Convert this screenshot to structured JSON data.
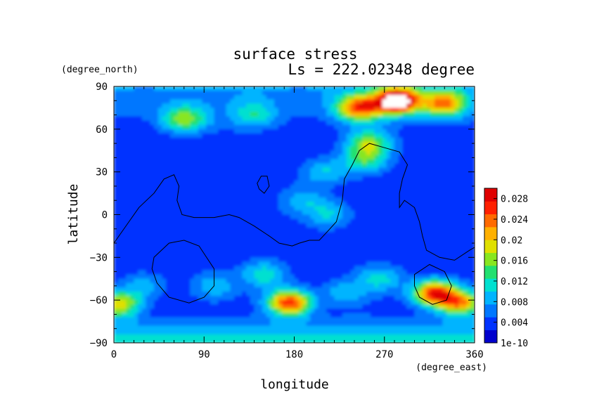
{
  "chart_data": {
    "type": "heatmap",
    "title": "surface stress",
    "subtitle": "Ls = 222.02348 degree",
    "xlabel": "longitude",
    "ylabel": "latitude",
    "x_unit": "(degree_east)",
    "y_unit": "(degree_north)",
    "xlim": [
      0,
      360
    ],
    "ylim": [
      -90,
      90
    ],
    "x_ticks": [
      "0",
      "90",
      "180",
      "270",
      "360"
    ],
    "y_ticks": [
      "90",
      "60",
      "30",
      "0",
      "-30",
      "-60",
      "-90"
    ],
    "colorbar": {
      "range": [
        0,
        0.03
      ],
      "tick_labels": [
        "1e-10",
        "0.004",
        "0.008",
        "0.012",
        "0.016",
        "0.02",
        "0.024",
        "0.028"
      ],
      "tick_values": [
        0,
        0.004,
        0.008,
        0.012,
        0.016,
        0.02,
        0.024,
        0.028
      ],
      "colors": [
        "#0000cd",
        "#0033ff",
        "#0077ff",
        "#00b4ff",
        "#00e0d0",
        "#22e070",
        "#88e620",
        "#e0e000",
        "#ffb000",
        "#ff6a00",
        "#ff2000",
        "#e00000"
      ]
    },
    "hotspots": [
      {
        "lon": 283,
        "lat": 80,
        "value": 0.034
      },
      {
        "lon": 245,
        "lat": 75,
        "value": 0.024
      },
      {
        "lon": 330,
        "lat": 78,
        "value": 0.022
      },
      {
        "lon": 70,
        "lat": 67,
        "value": 0.016
      },
      {
        "lon": 140,
        "lat": 70,
        "value": 0.011
      },
      {
        "lon": 320,
        "lat": -55,
        "value": 0.026
      },
      {
        "lon": 345,
        "lat": -62,
        "value": 0.022
      },
      {
        "lon": 175,
        "lat": -62,
        "value": 0.027
      },
      {
        "lon": 150,
        "lat": -42,
        "value": 0.012
      },
      {
        "lon": 5,
        "lat": -63,
        "value": 0.02
      },
      {
        "lon": 255,
        "lat": 50,
        "value": 0.016
      },
      {
        "lon": 250,
        "lat": 38,
        "value": 0.013
      },
      {
        "lon": 210,
        "lat": 30,
        "value": 0.01
      },
      {
        "lon": 190,
        "lat": 10,
        "value": 0.009
      },
      {
        "lon": 215,
        "lat": 0,
        "value": 0.01
      },
      {
        "lon": 265,
        "lat": -45,
        "value": 0.011
      },
      {
        "lon": 230,
        "lat": -55,
        "value": 0.009
      },
      {
        "lon": 100,
        "lat": -50,
        "value": 0.009
      },
      {
        "lon": 30,
        "lat": -50,
        "value": 0.009
      }
    ],
    "contours": [
      {
        "points": [
          [
            0,
            -20
          ],
          [
            15,
            -5
          ],
          [
            25,
            5
          ],
          [
            40,
            15
          ],
          [
            50,
            25
          ],
          [
            60,
            28
          ],
          [
            65,
            20
          ],
          [
            63,
            10
          ],
          [
            68,
            0
          ],
          [
            80,
            -2
          ],
          [
            100,
            -2
          ],
          [
            115,
            0
          ],
          [
            125,
            -2
          ],
          [
            140,
            -8
          ],
          [
            155,
            -15
          ],
          [
            165,
            -20
          ],
          [
            178,
            -22
          ],
          [
            185,
            -20
          ],
          [
            195,
            -18
          ],
          [
            205,
            -18
          ],
          [
            213,
            -12
          ],
          [
            222,
            -5
          ],
          [
            228,
            10
          ],
          [
            230,
            25
          ],
          [
            238,
            35
          ],
          [
            245,
            45
          ],
          [
            255,
            50
          ],
          [
            270,
            47
          ],
          [
            285,
            44
          ],
          [
            293,
            35
          ],
          [
            288,
            25
          ],
          [
            285,
            15
          ],
          [
            285,
            5
          ],
          [
            290,
            10
          ],
          [
            300,
            5
          ],
          [
            305,
            -5
          ],
          [
            308,
            -15
          ],
          [
            312,
            -25
          ],
          [
            325,
            -30
          ],
          [
            340,
            -32
          ],
          [
            355,
            -25
          ],
          [
            360,
            -23
          ]
        ],
        "closed": false
      },
      {
        "points": [
          [
            145,
            18
          ],
          [
            150,
            15
          ],
          [
            155,
            20
          ],
          [
            153,
            27
          ],
          [
            147,
            27
          ],
          [
            143,
            22
          ]
        ],
        "closed": true
      },
      {
        "points": [
          [
            40,
            -30
          ],
          [
            55,
            -20
          ],
          [
            70,
            -18
          ],
          [
            85,
            -22
          ],
          [
            100,
            -38
          ],
          [
            100,
            -50
          ],
          [
            90,
            -58
          ],
          [
            75,
            -62
          ],
          [
            55,
            -58
          ],
          [
            43,
            -48
          ],
          [
            38,
            -38
          ]
        ],
        "closed": true
      },
      {
        "points": [
          [
            300,
            -42
          ],
          [
            315,
            -35
          ],
          [
            330,
            -40
          ],
          [
            337,
            -50
          ],
          [
            332,
            -60
          ],
          [
            318,
            -63
          ],
          [
            305,
            -58
          ],
          [
            300,
            -50
          ]
        ],
        "closed": true
      }
    ]
  }
}
